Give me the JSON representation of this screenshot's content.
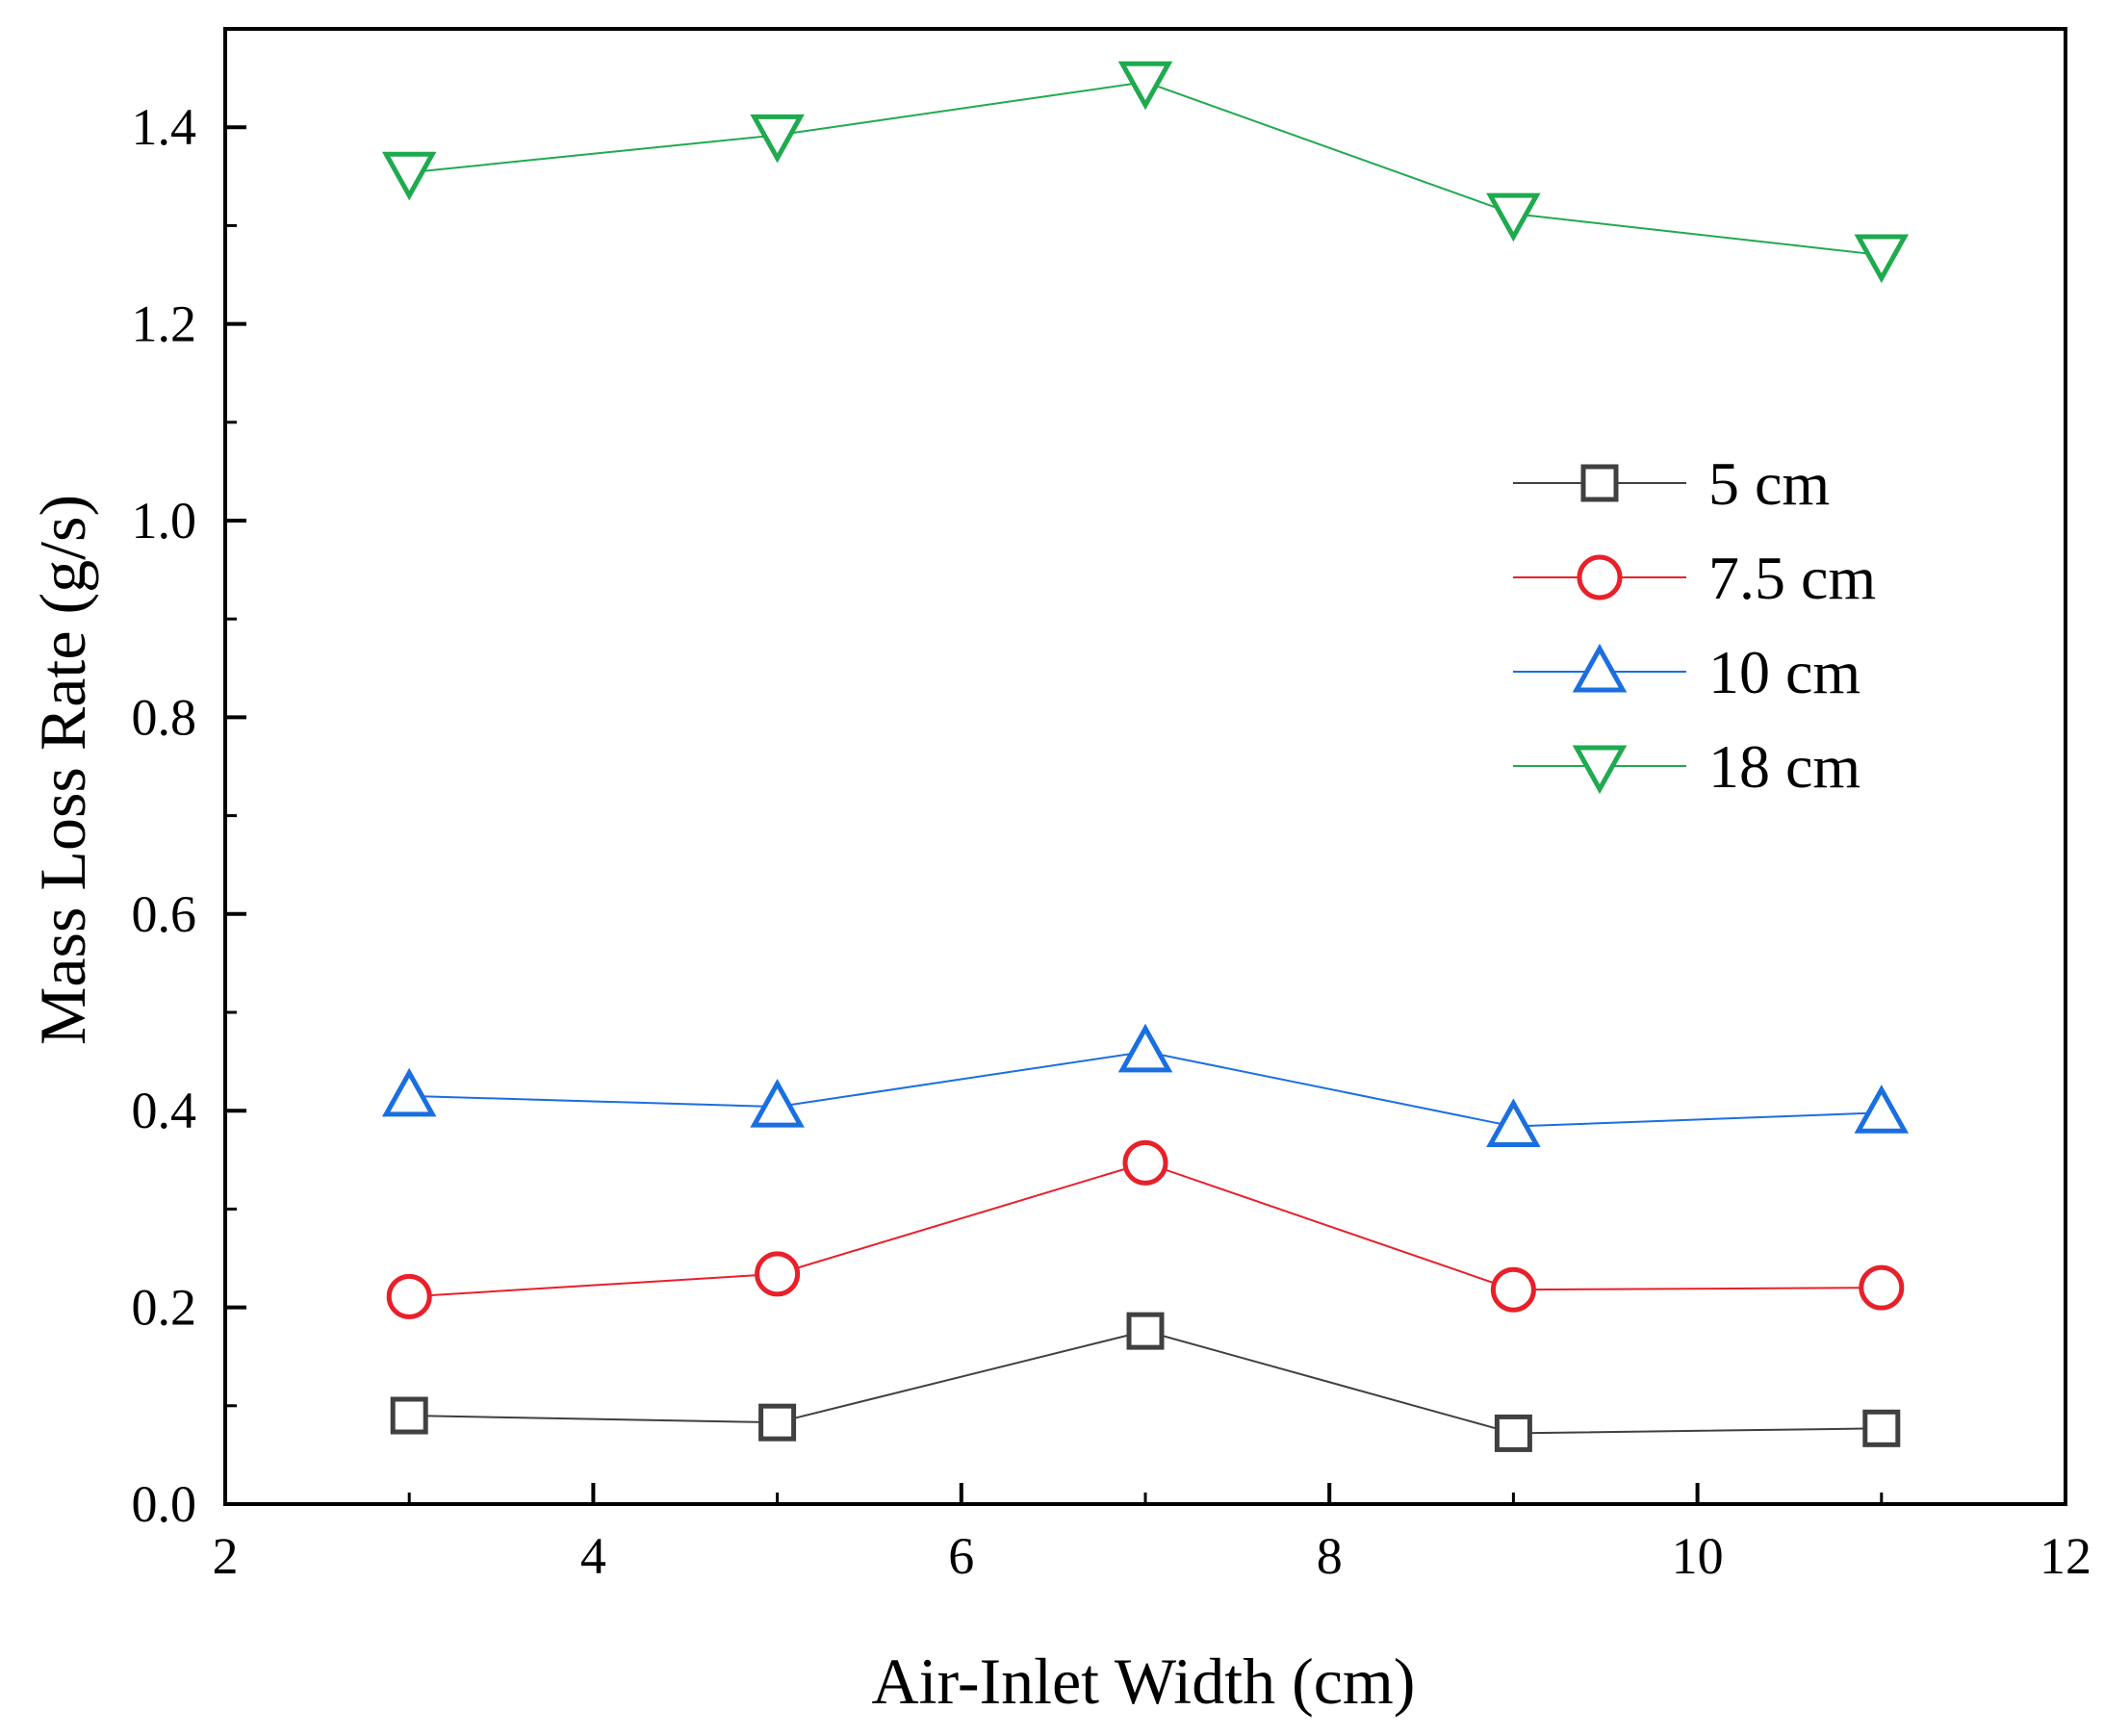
{
  "chart_data": {
    "type": "line",
    "title": "",
    "xlabel": "Air-Inlet Width (cm)",
    "ylabel": "Mass Loss Rate (g/s)",
    "xlim": [
      2,
      12
    ],
    "ylim": [
      0.0,
      1.5
    ],
    "xticks": [
      2,
      4,
      6,
      8,
      10,
      12
    ],
    "yticks": [
      0.0,
      0.2,
      0.4,
      0.6,
      0.8,
      1.0,
      1.2,
      1.4
    ],
    "xtick_labels": [
      "2",
      "4",
      "6",
      "8",
      "10",
      "12"
    ],
    "ytick_labels": [
      "0.0",
      "0.2",
      "0.4",
      "0.6",
      "0.8",
      "1.0",
      "1.2",
      "1.4"
    ],
    "grid": false,
    "legend_position": "right",
    "x": [
      3,
      5,
      7,
      9,
      11
    ],
    "series": [
      {
        "name": "5 cm",
        "marker": "square",
        "color": "#404040",
        "values": [
          0.09,
          0.083,
          0.176,
          0.072,
          0.077
        ]
      },
      {
        "name": "7.5 cm",
        "marker": "circle",
        "color": "#e8202a",
        "values": [
          0.211,
          0.234,
          0.347,
          0.218,
          0.22
        ]
      },
      {
        "name": "10 cm",
        "marker": "triangle-up",
        "color": "#1a6fe0",
        "values": [
          0.415,
          0.404,
          0.46,
          0.384,
          0.398
        ]
      },
      {
        "name": "18 cm",
        "marker": "triangle-down",
        "color": "#1faa4f",
        "values": [
          1.354,
          1.392,
          1.446,
          1.312,
          1.27
        ]
      }
    ]
  }
}
